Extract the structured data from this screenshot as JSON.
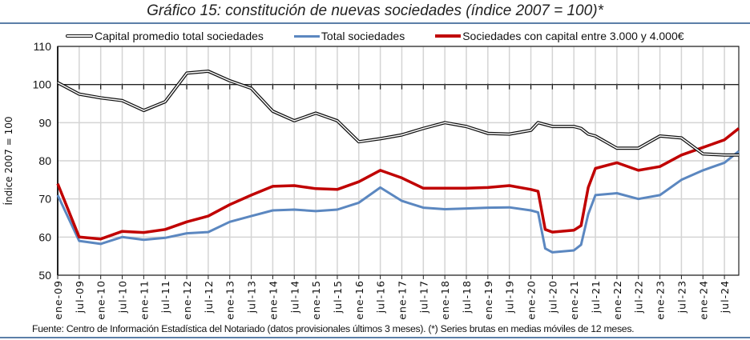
{
  "title": "Gráfico 15: constitución de nuevas sociedades (índice 2007 = 100)*",
  "footer": "Fuente: Centro de Información Estadística del Notariado (datos provisionales últimos 3 meses). (*) Series brutas en medias móviles de 12 meses.",
  "chart_data": {
    "type": "line",
    "title": "Gráfico 15: constitución de nuevas sociedades (índice 2007 = 100)*",
    "ylabel": "Índice 2007 = 100",
    "xlabel": "",
    "ylim": [
      50,
      110
    ],
    "yticks": [
      "50",
      "60",
      "70",
      "80",
      "90",
      "100",
      "110"
    ],
    "xticks": [
      "ene-09",
      "jul-09",
      "ene-10",
      "jul-10",
      "ene-11",
      "jul-11",
      "ene-12",
      "jul-12",
      "ene-13",
      "jul-13",
      "ene-14",
      "jul-14",
      "ene-15",
      "jul-15",
      "ene-16",
      "jul-16",
      "ene-17",
      "jul-17",
      "ene-18",
      "jul-18",
      "ene-19",
      "jul-19",
      "ene-20",
      "jul-20",
      "ene-21",
      "jul-21",
      "ene-22",
      "jul-22",
      "ene-23",
      "jul-23",
      "ene-24",
      "jul-24"
    ],
    "grid": true,
    "legend_position": "top",
    "x": [
      "2009-01",
      "2009-07",
      "2010-01",
      "2010-07",
      "2011-01",
      "2011-07",
      "2012-01",
      "2012-07",
      "2013-01",
      "2013-07",
      "2014-01",
      "2014-07",
      "2015-01",
      "2015-07",
      "2016-01",
      "2016-07",
      "2017-01",
      "2017-07",
      "2018-01",
      "2018-07",
      "2019-01",
      "2019-07",
      "2020-01",
      "2020-03",
      "2020-05",
      "2020-07",
      "2021-01",
      "2021-03",
      "2021-05",
      "2021-07",
      "2022-01",
      "2022-07",
      "2023-01",
      "2023-07",
      "2024-01",
      "2024-07",
      "2024-11"
    ],
    "series": [
      {
        "name": "Capital promedio total sociedades",
        "color": "#111111",
        "values": [
          100.5,
          97.5,
          96.5,
          95.8,
          93.2,
          95.5,
          103,
          103.5,
          101,
          99,
          93,
          90.5,
          92.5,
          90.5,
          85,
          85.8,
          86.8,
          88.5,
          90,
          89,
          87.2,
          87,
          88,
          90,
          89.5,
          89,
          89,
          88.5,
          87,
          86.5,
          83.3,
          83.3,
          86.5,
          86,
          81.8,
          81.5,
          81.5
        ]
      },
      {
        "name": "Total sociedades",
        "color": "#5b87c0",
        "values": [
          71,
          59,
          58.2,
          60,
          59.3,
          59.8,
          61,
          61.3,
          64,
          65.5,
          67,
          67.2,
          66.8,
          67.2,
          69,
          73,
          69.5,
          67.7,
          67.3,
          67.5,
          67.7,
          67.8,
          67,
          66.5,
          57,
          56,
          56.5,
          58,
          66,
          71,
          71.5,
          70,
          71,
          75,
          77.5,
          79.5,
          82.5
        ]
      },
      {
        "name": "Sociedades con capital entre 3.000 y 4.000€",
        "color": "#c00000",
        "values": [
          74,
          60,
          59.5,
          61.5,
          61.2,
          62,
          64,
          65.5,
          68.5,
          71,
          73.3,
          73.5,
          72.7,
          72.5,
          74.5,
          77.5,
          75.5,
          72.8,
          72.8,
          72.8,
          73,
          73.5,
          72.5,
          72,
          62,
          61.3,
          61.8,
          63,
          73,
          78,
          79.5,
          77.5,
          78.5,
          81.5,
          83.5,
          85.5,
          88.5
        ]
      }
    ]
  }
}
